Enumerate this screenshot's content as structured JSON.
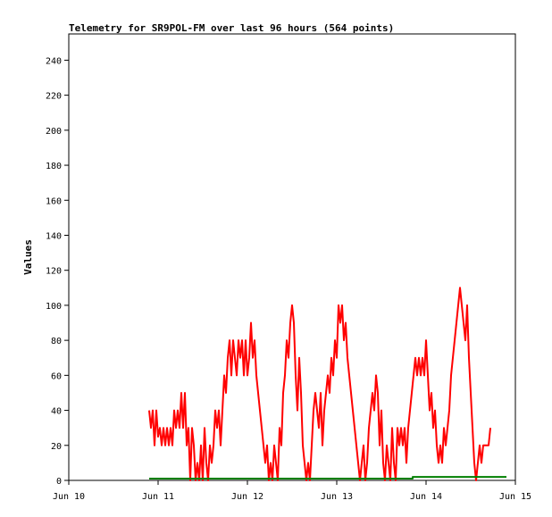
{
  "chart_data": {
    "type": "line",
    "title": "Telemetry for SR9POL-FM over last 96 hours (564 points)",
    "xlabel": "",
    "ylabel": "Values",
    "x_ticks": [
      "Jun 10",
      "Jun 11",
      "Jun 12",
      "Jun 13",
      "Jun 14",
      "Jun 15"
    ],
    "xlim": [
      "Jun 10",
      "Jun 15"
    ],
    "ylim": [
      0,
      255
    ],
    "y_ticks": [
      0,
      20,
      40,
      60,
      80,
      100,
      120,
      140,
      160,
      180,
      200,
      220,
      240
    ],
    "grid": false,
    "legend": "none",
    "x_unit": "days after Jun 10 00:00",
    "series": [
      {
        "color": "#ff0000",
        "points": [
          [
            0.9,
            40
          ],
          [
            0.92,
            30
          ],
          [
            0.94,
            40
          ],
          [
            0.96,
            20
          ],
          [
            0.98,
            40
          ],
          [
            1.0,
            25
          ],
          [
            1.02,
            30
          ],
          [
            1.04,
            20
          ],
          [
            1.06,
            30
          ],
          [
            1.08,
            20
          ],
          [
            1.1,
            30
          ],
          [
            1.12,
            20
          ],
          [
            1.14,
            30
          ],
          [
            1.16,
            20
          ],
          [
            1.18,
            40
          ],
          [
            1.2,
            30
          ],
          [
            1.22,
            40
          ],
          [
            1.24,
            30
          ],
          [
            1.26,
            50
          ],
          [
            1.28,
            30
          ],
          [
            1.3,
            50
          ],
          [
            1.32,
            20
          ],
          [
            1.34,
            30
          ],
          [
            1.36,
            0
          ],
          [
            1.38,
            30
          ],
          [
            1.4,
            20
          ],
          [
            1.42,
            0
          ],
          [
            1.44,
            10
          ],
          [
            1.46,
            0
          ],
          [
            1.48,
            20
          ],
          [
            1.5,
            0
          ],
          [
            1.52,
            30
          ],
          [
            1.54,
            10
          ],
          [
            1.56,
            0
          ],
          [
            1.58,
            20
          ],
          [
            1.6,
            10
          ],
          [
            1.62,
            20
          ],
          [
            1.64,
            40
          ],
          [
            1.66,
            30
          ],
          [
            1.68,
            40
          ],
          [
            1.7,
            20
          ],
          [
            1.72,
            40
          ],
          [
            1.74,
            60
          ],
          [
            1.76,
            50
          ],
          [
            1.78,
            70
          ],
          [
            1.8,
            80
          ],
          [
            1.82,
            60
          ],
          [
            1.84,
            80
          ],
          [
            1.86,
            70
          ],
          [
            1.88,
            60
          ],
          [
            1.9,
            80
          ],
          [
            1.92,
            70
          ],
          [
            1.94,
            80
          ],
          [
            1.96,
            60
          ],
          [
            1.98,
            80
          ],
          [
            2.0,
            60
          ],
          [
            2.02,
            70
          ],
          [
            2.04,
            90
          ],
          [
            2.06,
            70
          ],
          [
            2.08,
            80
          ],
          [
            2.1,
            60
          ],
          [
            2.12,
            50
          ],
          [
            2.14,
            40
          ],
          [
            2.16,
            30
          ],
          [
            2.18,
            20
          ],
          [
            2.2,
            10
          ],
          [
            2.22,
            20
          ],
          [
            2.24,
            0
          ],
          [
            2.26,
            10
          ],
          [
            2.28,
            0
          ],
          [
            2.3,
            20
          ],
          [
            2.32,
            10
          ],
          [
            2.34,
            0
          ],
          [
            2.36,
            30
          ],
          [
            2.38,
            20
          ],
          [
            2.4,
            50
          ],
          [
            2.42,
            60
          ],
          [
            2.44,
            80
          ],
          [
            2.46,
            70
          ],
          [
            2.48,
            90
          ],
          [
            2.5,
            100
          ],
          [
            2.52,
            90
          ],
          [
            2.54,
            60
          ],
          [
            2.56,
            40
          ],
          [
            2.58,
            70
          ],
          [
            2.6,
            50
          ],
          [
            2.62,
            20
          ],
          [
            2.64,
            10
          ],
          [
            2.66,
            0
          ],
          [
            2.68,
            10
          ],
          [
            2.7,
            0
          ],
          [
            2.72,
            20
          ],
          [
            2.74,
            40
          ],
          [
            2.76,
            50
          ],
          [
            2.78,
            40
          ],
          [
            2.8,
            30
          ],
          [
            2.82,
            50
          ],
          [
            2.84,
            20
          ],
          [
            2.86,
            40
          ],
          [
            2.88,
            50
          ],
          [
            2.9,
            60
          ],
          [
            2.92,
            50
          ],
          [
            2.94,
            70
          ],
          [
            2.96,
            60
          ],
          [
            2.98,
            80
          ],
          [
            3.0,
            70
          ],
          [
            3.02,
            100
          ],
          [
            3.04,
            90
          ],
          [
            3.06,
            100
          ],
          [
            3.08,
            80
          ],
          [
            3.1,
            90
          ],
          [
            3.12,
            70
          ],
          [
            3.14,
            60
          ],
          [
            3.16,
            50
          ],
          [
            3.18,
            40
          ],
          [
            3.2,
            30
          ],
          [
            3.22,
            20
          ],
          [
            3.24,
            10
          ],
          [
            3.26,
            0
          ],
          [
            3.28,
            10
          ],
          [
            3.3,
            20
          ],
          [
            3.32,
            0
          ],
          [
            3.34,
            10
          ],
          [
            3.36,
            30
          ],
          [
            3.38,
            40
          ],
          [
            3.4,
            50
          ],
          [
            3.42,
            40
          ],
          [
            3.44,
            60
          ],
          [
            3.46,
            50
          ],
          [
            3.48,
            20
          ],
          [
            3.5,
            40
          ],
          [
            3.52,
            10
          ],
          [
            3.54,
            0
          ],
          [
            3.56,
            20
          ],
          [
            3.58,
            10
          ],
          [
            3.6,
            0
          ],
          [
            3.62,
            30
          ],
          [
            3.64,
            10
          ],
          [
            3.66,
            0
          ],
          [
            3.68,
            30
          ],
          [
            3.7,
            20
          ],
          [
            3.72,
            30
          ],
          [
            3.74,
            20
          ],
          [
            3.76,
            30
          ],
          [
            3.78,
            10
          ],
          [
            3.8,
            30
          ],
          [
            3.82,
            40
          ],
          [
            3.84,
            50
          ],
          [
            3.86,
            60
          ],
          [
            3.88,
            70
          ],
          [
            3.9,
            60
          ],
          [
            3.92,
            70
          ],
          [
            3.94,
            60
          ],
          [
            3.96,
            70
          ],
          [
            3.98,
            60
          ],
          [
            4.0,
            80
          ],
          [
            4.02,
            60
          ],
          [
            4.04,
            40
          ],
          [
            4.06,
            50
          ],
          [
            4.08,
            30
          ],
          [
            4.1,
            40
          ],
          [
            4.12,
            20
          ],
          [
            4.14,
            10
          ],
          [
            4.16,
            20
          ],
          [
            4.18,
            10
          ],
          [
            4.2,
            30
          ],
          [
            4.22,
            20
          ],
          [
            4.24,
            30
          ],
          [
            4.26,
            40
          ],
          [
            4.28,
            60
          ],
          [
            4.3,
            70
          ],
          [
            4.32,
            80
          ],
          [
            4.34,
            90
          ],
          [
            4.36,
            100
          ],
          [
            4.38,
            110
          ],
          [
            4.4,
            100
          ],
          [
            4.42,
            90
          ],
          [
            4.44,
            80
          ],
          [
            4.46,
            100
          ],
          [
            4.48,
            70
          ],
          [
            4.5,
            50
          ],
          [
            4.52,
            30
          ],
          [
            4.54,
            10
          ],
          [
            4.56,
            0
          ],
          [
            4.58,
            10
          ],
          [
            4.6,
            20
          ],
          [
            4.62,
            10
          ],
          [
            4.64,
            20
          ],
          [
            4.66,
            20
          ],
          [
            4.68,
            20
          ],
          [
            4.7,
            20
          ],
          [
            4.72,
            30
          ]
        ]
      },
      {
        "color": "#008000",
        "points": [
          [
            0.9,
            1
          ],
          [
            3.85,
            1
          ],
          [
            3.85,
            2
          ],
          [
            4.9,
            2
          ]
        ]
      }
    ]
  }
}
